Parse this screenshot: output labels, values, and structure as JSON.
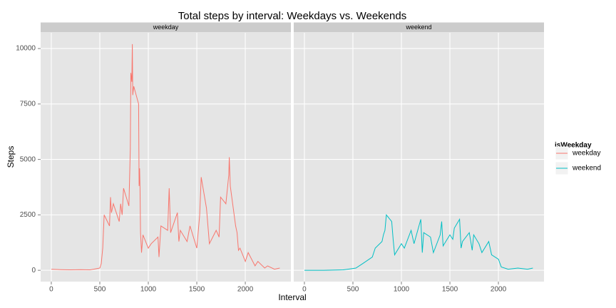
{
  "chart_data": {
    "type": "line",
    "title": "Total steps by interval: Weekdays vs. Weekends",
    "xlabel": "Interval",
    "ylabel": "Steps",
    "legend_title": "isWeekday",
    "legend": "right",
    "grid": true,
    "xlim": [
      -110,
      2470
    ],
    "xticks": [
      0,
      500,
      1000,
      1500,
      2000
    ],
    "ylim": [
      -510,
      10710
    ],
    "yticks": [
      0,
      2500,
      5000,
      7500,
      10000
    ],
    "series": [
      {
        "name": "weekday",
        "color": "#f8766d",
        "x": [
          0,
          100,
          200,
          300,
          400,
          450,
          500,
          515,
          530,
          545,
          600,
          610,
          620,
          640,
          700,
          715,
          730,
          745,
          800,
          815,
          820,
          830,
          835,
          840,
          850,
          900,
          905,
          910,
          915,
          920,
          930,
          945,
          1000,
          1030,
          1100,
          1110,
          1130,
          1200,
          1215,
          1230,
          1300,
          1315,
          1330,
          1400,
          1430,
          1500,
          1530,
          1545,
          1600,
          1630,
          1700,
          1730,
          1745,
          1800,
          1830,
          1835,
          1845,
          1900,
          1915,
          1930,
          1945,
          2000,
          2030,
          2100,
          2130,
          2200,
          2230,
          2300,
          2355
        ],
        "values": [
          50,
          30,
          20,
          30,
          20,
          60,
          100,
          300,
          1000,
          2500,
          2000,
          3300,
          2600,
          3000,
          2200,
          3000,
          2500,
          3700,
          2900,
          5500,
          8900,
          8500,
          10200,
          7900,
          8300,
          7500,
          3800,
          4600,
          3700,
          1700,
          800,
          1600,
          1000,
          1200,
          1500,
          600,
          2000,
          1800,
          3700,
          1700,
          2600,
          1300,
          1800,
          1300,
          2000,
          1000,
          2500,
          4200,
          2800,
          1200,
          1800,
          1500,
          3300,
          3000,
          4300,
          5100,
          3800,
          2000,
          1700,
          900,
          1000,
          400,
          800,
          200,
          400,
          100,
          200,
          50,
          100
        ]
      },
      {
        "name": "weekend",
        "color": "#00bfc4",
        "x": [
          0,
          200,
          400,
          500,
          530,
          600,
          700,
          730,
          800,
          815,
          830,
          845,
          900,
          915,
          930,
          1000,
          1030,
          1100,
          1130,
          1200,
          1215,
          1230,
          1300,
          1330,
          1400,
          1415,
          1430,
          1500,
          1530,
          1545,
          1600,
          1615,
          1630,
          1700,
          1715,
          1730,
          1745,
          1800,
          1830,
          1900,
          1930,
          2000,
          2030,
          2100,
          2200,
          2300,
          2355
        ],
        "values": [
          0,
          0,
          20,
          80,
          100,
          300,
          600,
          1000,
          1300,
          1600,
          1800,
          2500,
          2200,
          1400,
          700,
          1200,
          1000,
          1800,
          1200,
          2300,
          800,
          1700,
          1500,
          800,
          1600,
          2200,
          1100,
          1600,
          1400,
          1900,
          2300,
          1000,
          1300,
          1700,
          1300,
          900,
          1600,
          1200,
          800,
          1300,
          700,
          500,
          150,
          50,
          100,
          50,
          100
        ]
      }
    ]
  }
}
